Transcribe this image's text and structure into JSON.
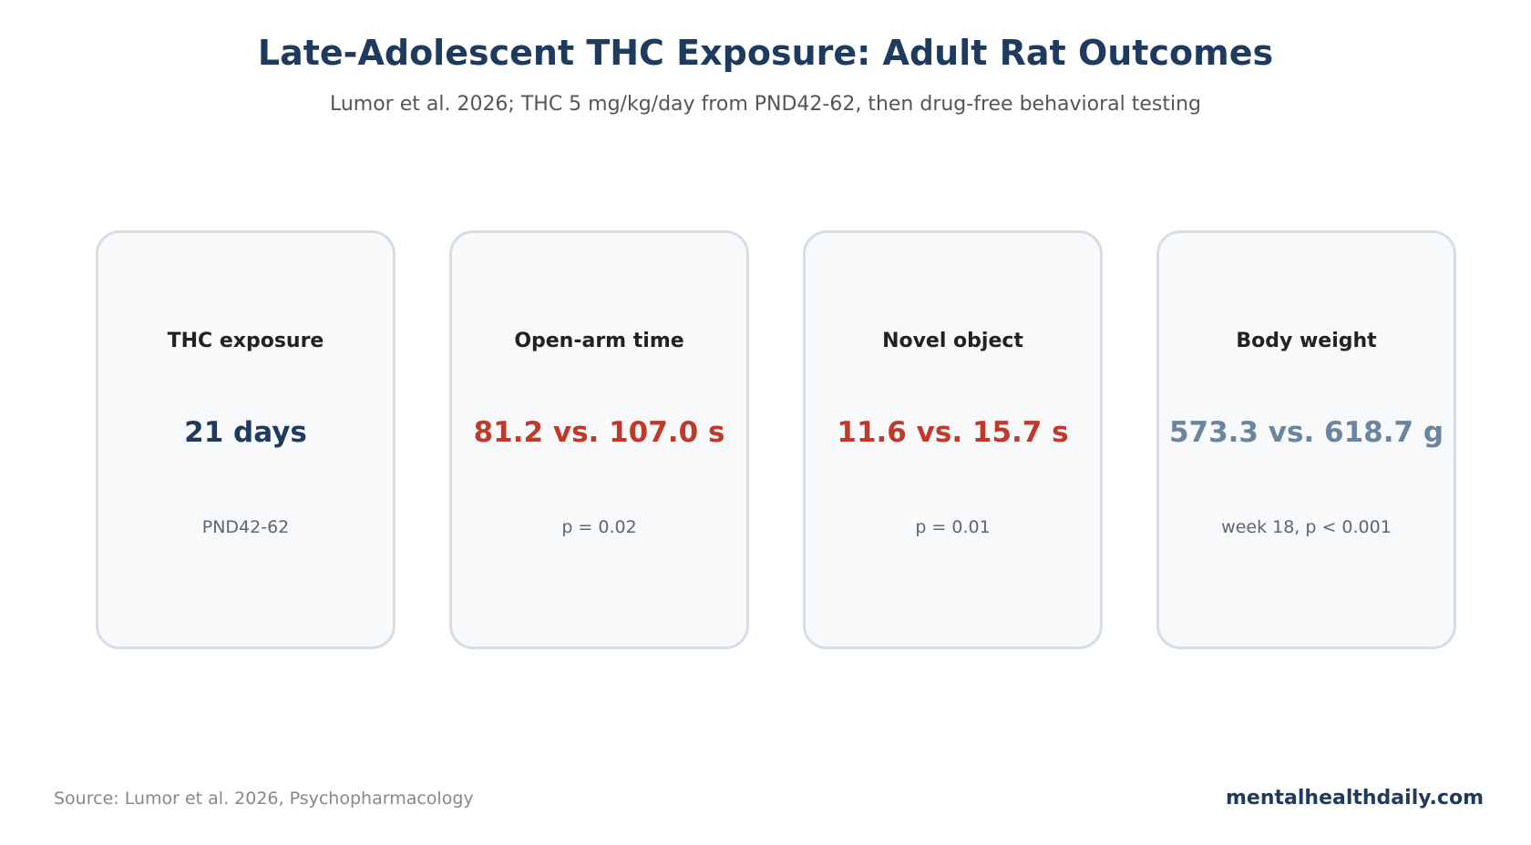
{
  "title": "Late-Adolescent THC Exposure: Adult Rat Outcomes",
  "subtitle": "Lumor et al. 2026; THC 5 mg/kg/day from PND42-62, then drug-free behavioral testing",
  "colors": {
    "title": "#1f3a5f",
    "value_navy": "#1f3a5f",
    "value_red": "#c0392b",
    "value_slate": "#6b859e"
  },
  "cards": [
    {
      "label": "THC exposure",
      "value": "21 days",
      "note": "PND42-62",
      "value_color": "#1f3a5f"
    },
    {
      "label": "Open-arm time",
      "value": "81.2 vs. 107.0 s",
      "note": "p = 0.02",
      "value_color": "#c0392b"
    },
    {
      "label": "Novel object",
      "value": "11.6 vs. 15.7 s",
      "note": "p = 0.01",
      "value_color": "#c0392b"
    },
    {
      "label": "Body weight",
      "value": "573.3 vs. 618.7 g",
      "note": "week 18, p < 0.001",
      "value_color": "#6b859e"
    }
  ],
  "footer": {
    "source": "Source: Lumor et al. 2026, Psychopharmacology",
    "brand": "mentalhealthdaily.com"
  }
}
